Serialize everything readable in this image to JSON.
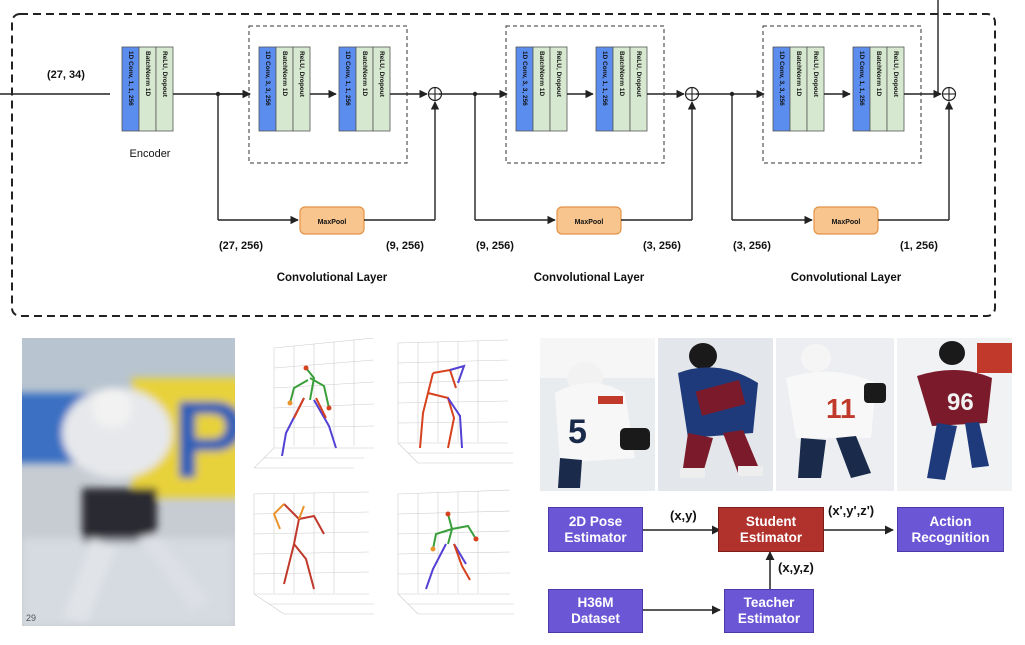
{
  "encoder": {
    "input_shape": "(27, 34)",
    "caption": "Encoder",
    "blocks": [
      "1D Conv, 1, 1, 256",
      "BatchNorm 1D",
      "ReLU, Dropout"
    ]
  },
  "conv_layers": [
    {
      "caption": "Convolutional Layer",
      "in_shape": "(27, 256)",
      "out_shape": "(9, 256)",
      "pool_label": "MaxPool",
      "group1": [
        "1D Conv, 3, 3, 256",
        "BatchNorm 1D",
        "ReLU, Dropout"
      ],
      "group2": [
        "1D Conv, 1, 1, 256",
        "BatchNorm 1D",
        "ReLU, Dropout"
      ]
    },
    {
      "caption": "Convolutional Layer",
      "in_shape": "(9, 256)",
      "out_shape": "(3, 256)",
      "pool_label": "MaxPool",
      "group1": [
        "1D Conv, 3, 3, 256",
        "BatchNorm 1D",
        "ReLU, Dropout"
      ],
      "group2": [
        "1D Conv, 1, 1, 256",
        "BatchNorm 1D",
        "ReLU, Dropout"
      ]
    },
    {
      "caption": "Convolutional Layer",
      "in_shape": "(3, 256)",
      "out_shape": "(1, 256)",
      "pool_label": "MaxPool",
      "group1": [
        "1D Conv, 3, 3, 256",
        "BatchNorm 1D",
        "ReLU, Dropout"
      ],
      "group2": [
        "1D Conv, 1, 1, 256",
        "BatchNorm 1D",
        "ReLU, Dropout"
      ]
    }
  ],
  "video_frame_label": "29",
  "flow": {
    "pose_estimator": "2D Pose\nEstimator",
    "student": "Student\nEstimator",
    "action": "Action\nRecognition",
    "dataset": "H36M\nDataset",
    "teacher": "Teacher\nEstimator",
    "edge_xy": "(x,y)",
    "edge_xyz_prime": "(x',y',z')",
    "edge_xyz": "(x,y,z)"
  },
  "colors": {
    "conv_block": "#5b8def",
    "norm_block": "#d6e8d0",
    "pool_fill": "#f9c58f",
    "pool_stroke": "#e39447",
    "flow_purple": "#6b57d6",
    "flow_red": "#b1322c",
    "skeleton_right": "#d6421e",
    "skeleton_left": "#5340d4",
    "skeleton_torso": "#3a9f3a"
  }
}
